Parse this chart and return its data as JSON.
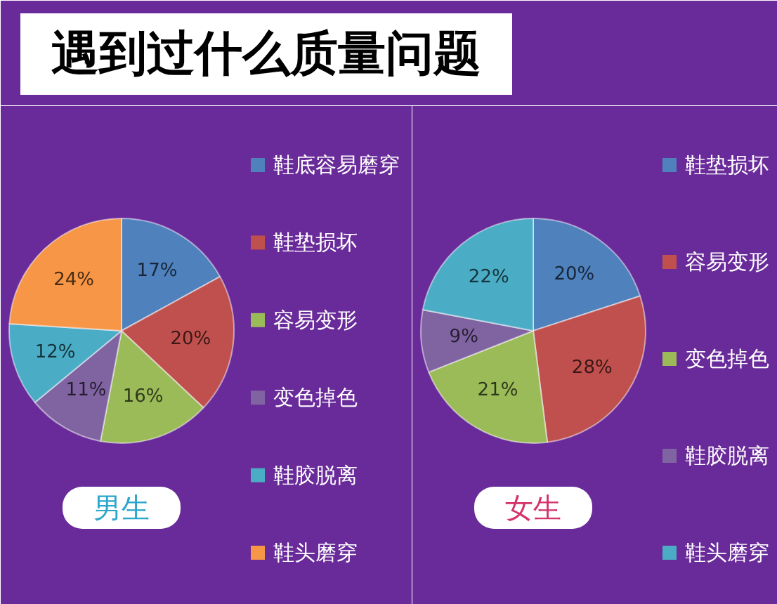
{
  "chart_data": [
    {
      "type": "pie",
      "title": "遇到过什么质量问题",
      "subtitle": "男生",
      "categories": [
        "鞋底容易磨穿",
        "鞋垫损坏",
        "容易变形",
        "变色掉色",
        "鞋胶脱离",
        "鞋头磨穿"
      ],
      "values": [
        17,
        20,
        16,
        11,
        12,
        24
      ],
      "colors": [
        "#4f81bd",
        "#c0504d",
        "#9bbb59",
        "#8064a2",
        "#4bacc6",
        "#f79646"
      ],
      "value_labels": [
        "17%",
        "20%",
        "16%",
        "11%",
        "12%",
        "24%"
      ],
      "legend": "right"
    },
    {
      "type": "pie",
      "subtitle": "女生",
      "categories": [
        "鞋垫损坏",
        "容易变形",
        "变色掉色",
        "鞋胶脱离",
        "鞋头磨穿"
      ],
      "values": [
        20,
        28,
        21,
        9,
        22
      ],
      "colors": [
        "#4f81bd",
        "#c0504d",
        "#9bbb59",
        "#8064a2",
        "#4bacc6"
      ],
      "value_labels": [
        "20%",
        "28%",
        "21%",
        "9%",
        "22%"
      ],
      "legend": "right"
    }
  ]
}
